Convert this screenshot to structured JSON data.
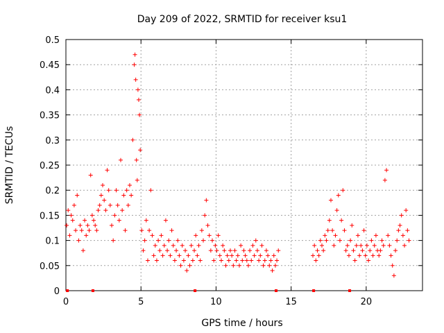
{
  "chart_data": {
    "type": "scatter",
    "title": "Day 209 of 2022, SRMTID for receiver ksu1",
    "xlabel": "GPS time / hours",
    "ylabel": "SRMTID / TECUs",
    "xlim": [
      0,
      23.75
    ],
    "ylim": [
      0,
      0.5
    ],
    "grid": true,
    "marker": "+",
    "x_ticks": [
      0,
      5,
      10,
      15,
      20
    ],
    "x_tick_labels": [
      "0",
      "5",
      "10",
      "15",
      "20"
    ],
    "y_ticks": [
      0,
      0.05,
      0.1,
      0.15,
      0.2,
      0.25,
      0.3,
      0.35,
      0.4,
      0.45,
      0.5
    ],
    "y_tick_labels": [
      "0",
      "0.05",
      "0.1",
      "0.15",
      "0.2",
      "0.25",
      "0.3",
      "0.35",
      "0.4",
      "0.45",
      "0.5"
    ],
    "series": [
      {
        "name": "SRMTID",
        "color": "#ff0000",
        "x": [
          0.05,
          0.15,
          0.25,
          0.35,
          0.45,
          0.55,
          0.65,
          0.75,
          0.85,
          0.95,
          1.05,
          1.15,
          1.25,
          1.35,
          1.45,
          1.55,
          1.65,
          1.75,
          1.85,
          1.95,
          2.05,
          2.15,
          2.25,
          2.35,
          2.45,
          2.55,
          2.65,
          2.75,
          2.85,
          2.95,
          3.05,
          3.15,
          3.25,
          3.35,
          3.45,
          3.55,
          3.65,
          3.75,
          3.85,
          3.95,
          4.05,
          4.15,
          4.25,
          4.35,
          4.45,
          4.55,
          4.6,
          4.65,
          4.7,
          4.75,
          4.8,
          4.85,
          4.9,
          4.95,
          5.05,
          5.15,
          5.25,
          5.35,
          5.45,
          5.55,
          5.65,
          5.75,
          5.85,
          5.95,
          6.05,
          6.15,
          6.25,
          6.35,
          6.45,
          6.55,
          6.65,
          6.75,
          6.85,
          6.95,
          7.05,
          7.15,
          7.25,
          7.35,
          7.45,
          7.55,
          7.65,
          7.75,
          7.85,
          7.95,
          8.05,
          8.15,
          8.25,
          8.35,
          8.45,
          8.55,
          8.65,
          8.75,
          8.85,
          8.95,
          9.05,
          9.15,
          9.25,
          9.35,
          9.45,
          9.55,
          9.65,
          9.75,
          9.85,
          9.95,
          10.05,
          10.15,
          10.25,
          10.35,
          10.45,
          10.55,
          10.65,
          10.75,
          10.85,
          10.95,
          11.05,
          11.15,
          11.25,
          11.35,
          11.45,
          11.55,
          11.65,
          11.75,
          11.85,
          11.95,
          12.05,
          12.15,
          12.25,
          12.35,
          12.45,
          12.55,
          12.65,
          12.75,
          12.85,
          12.95,
          13.05,
          13.15,
          13.25,
          13.35,
          13.45,
          13.55,
          13.65,
          13.75,
          13.85,
          13.95,
          14.05,
          14.15,
          16.45,
          16.55,
          16.65,
          16.75,
          16.85,
          16.95,
          17.05,
          17.15,
          17.25,
          17.35,
          17.45,
          17.55,
          17.65,
          17.75,
          17.85,
          17.95,
          18.05,
          18.15,
          18.25,
          18.35,
          18.45,
          18.55,
          18.65,
          18.75,
          18.85,
          18.95,
          19.05,
          19.15,
          19.25,
          19.35,
          19.45,
          19.55,
          19.65,
          19.75,
          19.85,
          19.95,
          20.05,
          20.15,
          20.25,
          20.35,
          20.45,
          20.55,
          20.65,
          20.75,
          20.85,
          20.95,
          21.05,
          21.15,
          21.25,
          21.35,
          21.45,
          21.55,
          21.65,
          21.75,
          21.85,
          21.95,
          22.05,
          22.15,
          22.25,
          22.35,
          22.45,
          22.55,
          22.65,
          22.75,
          22.85
        ],
        "y": [
          0.13,
          0.16,
          0.11,
          0.15,
          0.14,
          0.17,
          0.12,
          0.19,
          0.1,
          0.13,
          0.12,
          0.08,
          0.14,
          0.11,
          0.13,
          0.12,
          0.23,
          0.15,
          0.14,
          0.13,
          0.12,
          0.16,
          0.17,
          0.19,
          0.21,
          0.18,
          0.16,
          0.24,
          0.2,
          0.17,
          0.13,
          0.1,
          0.15,
          0.2,
          0.17,
          0.14,
          0.26,
          0.16,
          0.19,
          0.12,
          0.2,
          0.17,
          0.21,
          0.19,
          0.3,
          0.45,
          0.47,
          0.42,
          0.26,
          0.22,
          0.4,
          0.38,
          0.35,
          0.28,
          0.12,
          0.08,
          0.1,
          0.14,
          0.06,
          0.12,
          0.2,
          0.11,
          0.07,
          0.09,
          0.06,
          0.1,
          0.08,
          0.11,
          0.07,
          0.09,
          0.14,
          0.08,
          0.1,
          0.07,
          0.12,
          0.09,
          0.06,
          0.08,
          0.1,
          0.07,
          0.05,
          0.09,
          0.06,
          0.08,
          0.04,
          0.07,
          0.05,
          0.09,
          0.06,
          0.08,
          0.11,
          0.07,
          0.09,
          0.06,
          0.12,
          0.1,
          0.15,
          0.18,
          0.13,
          0.11,
          0.08,
          0.1,
          0.06,
          0.09,
          0.08,
          0.11,
          0.07,
          0.06,
          0.09,
          0.08,
          0.05,
          0.07,
          0.06,
          0.08,
          0.07,
          0.05,
          0.08,
          0.06,
          0.07,
          0.05,
          0.09,
          0.06,
          0.08,
          0.07,
          0.06,
          0.05,
          0.08,
          0.06,
          0.09,
          0.07,
          0.1,
          0.08,
          0.06,
          0.07,
          0.09,
          0.05,
          0.06,
          0.08,
          0.07,
          0.05,
          0.06,
          0.04,
          0.07,
          0.05,
          0.06,
          0.08,
          0.07,
          0.09,
          0.06,
          0.08,
          0.07,
          0.1,
          0.09,
          0.08,
          0.11,
          0.1,
          0.12,
          0.14,
          0.18,
          0.12,
          0.09,
          0.11,
          0.16,
          0.19,
          0.1,
          0.14,
          0.2,
          0.12,
          0.08,
          0.09,
          0.07,
          0.1,
          0.13,
          0.08,
          0.06,
          0.09,
          0.11,
          0.07,
          0.09,
          0.08,
          0.12,
          0.07,
          0.09,
          0.06,
          0.08,
          0.1,
          0.07,
          0.09,
          0.11,
          0.08,
          0.07,
          0.08,
          0.1,
          0.09,
          0.22,
          0.24,
          0.11,
          0.09,
          0.07,
          0.05,
          0.03,
          0.08,
          0.1,
          0.12,
          0.13,
          0.15,
          0.11,
          0.09,
          0.16,
          0.12,
          0.1
        ]
      }
    ],
    "gap_markers_x": [
      0.1,
      1.8,
      8.6,
      14.0,
      16.5,
      18.9
    ]
  }
}
